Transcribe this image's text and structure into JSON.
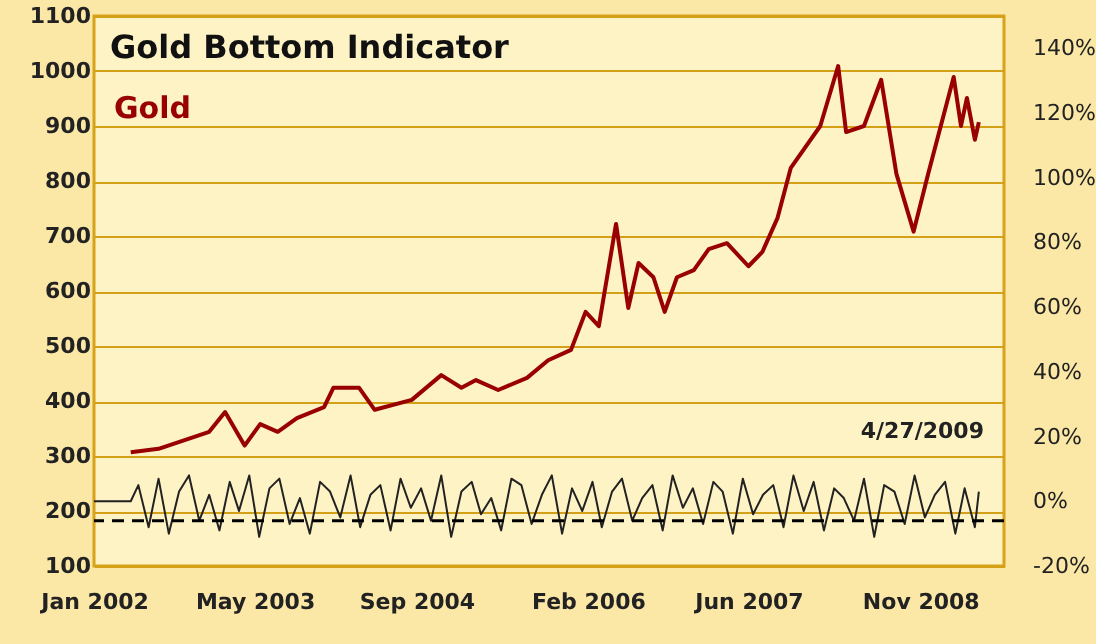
{
  "chart_data": {
    "type": "line",
    "title": "Gold Bottom Indicator",
    "annotations": [
      "4/27/2009"
    ],
    "xlim": [
      "2002-01-01",
      "2009-07-12"
    ],
    "xticks": [
      {
        "value": "2002-01",
        "label": "Jan 2002"
      },
      {
        "value": "2003-05",
        "label": "May 2003"
      },
      {
        "value": "2004-09",
        "label": "Sep 2004"
      },
      {
        "value": "2006-02",
        "label": "Feb 2006"
      },
      {
        "value": "2007-06",
        "label": "Jun 2007"
      },
      {
        "value": "2008-11",
        "label": "Nov 2008"
      }
    ],
    "ylim": [
      100,
      1100
    ],
    "yticks": [
      100,
      200,
      300,
      400,
      500,
      600,
      700,
      800,
      900,
      1000,
      1100
    ],
    "y2lim": [
      -20,
      150
    ],
    "y2ticks": [
      {
        "value": -20,
        "label": "-20%"
      },
      {
        "value": 0,
        "label": "0%"
      },
      {
        "value": 20,
        "label": "20%"
      },
      {
        "value": 40,
        "label": "40%"
      },
      {
        "value": 60,
        "label": "60%"
      },
      {
        "value": 80,
        "label": "80%"
      },
      {
        "value": 100,
        "label": "100%"
      },
      {
        "value": 120,
        "label": "120%"
      },
      {
        "value": 140,
        "label": "140%"
      }
    ],
    "grid": "y",
    "ref_lines": [
      {
        "axis": "y2",
        "value": -6,
        "color": "#000000",
        "line_style": "dashed"
      }
    ],
    "series": [
      {
        "name": "Gold",
        "color": "#990000",
        "x": [
          "2002-04-22",
          "2002-07-15",
          "2002-12-15",
          "2003-02-01",
          "2003-04-01",
          "2003-05-18",
          "2003-07-10",
          "2003-09-06",
          "2003-11-27",
          "2003-12-25",
          "2004-03-12",
          "2004-04-28",
          "2004-08-18",
          "2004-11-15",
          "2005-01-15",
          "2005-02-28",
          "2005-05-06",
          "2005-08-01",
          "2005-10-04",
          "2005-12-12",
          "2006-01-25",
          "2006-03-06",
          "2006-04-27",
          "2006-06-03",
          "2006-07-04",
          "2006-08-18",
          "2006-09-21",
          "2006-10-28",
          "2006-12-18",
          "2007-02-01",
          "2007-03-28",
          "2007-06-01",
          "2007-07-13",
          "2007-08-28",
          "2007-10-07",
          "2008-01-04",
          "2008-02-27",
          "2008-03-22",
          "2008-05-15",
          "2008-07-06",
          "2008-08-21",
          "2008-10-12",
          "2008-11-25",
          "2009-02-10",
          "2009-03-04",
          "2009-03-22",
          "2009-04-15",
          "2009-04-27"
        ],
        "values": [
          307,
          313,
          344,
          380,
          319,
          358,
          344,
          369,
          389,
          424,
          424,
          384,
          402,
          447,
          424,
          438,
          420,
          442,
          474,
          493,
          562,
          536,
          722,
          569,
          651,
          625,
          562,
          625,
          638,
          676,
          687,
          645,
          671,
          733,
          824,
          900,
          1009,
          889,
          900,
          984,
          813,
          708,
          813,
          989,
          900,
          951,
          875,
          907
        ]
      },
      {
        "color": "#222222",
        "axis": "y2",
        "x": [
          "2002-01-01",
          "2002-04-22",
          "2002-05-15",
          "2002-06-15",
          "2002-07-15",
          "2002-08-15",
          "2002-09-15",
          "2002-10-15",
          "2002-11-15",
          "2002-12-15",
          "2003-01-15",
          "2003-02-15",
          "2003-03-15",
          "2003-04-15",
          "2003-05-15",
          "2003-06-15",
          "2003-07-15",
          "2003-08-15",
          "2003-09-15",
          "2003-10-15",
          "2003-11-15",
          "2003-12-15",
          "2004-01-15",
          "2004-02-15",
          "2004-03-15",
          "2004-04-15",
          "2004-05-15",
          "2004-06-15",
          "2004-07-15",
          "2004-08-15",
          "2004-09-15",
          "2004-10-15",
          "2004-11-15",
          "2004-12-15",
          "2005-01-15",
          "2005-02-15",
          "2005-03-15",
          "2005-04-15",
          "2005-05-15",
          "2005-06-15",
          "2005-07-15",
          "2005-08-15",
          "2005-09-15",
          "2005-10-15",
          "2005-11-15",
          "2005-12-15",
          "2006-01-15",
          "2006-02-15",
          "2006-03-15",
          "2006-04-15",
          "2006-05-15",
          "2006-06-15",
          "2006-07-15",
          "2006-08-15",
          "2006-09-15",
          "2006-10-15",
          "2006-11-15",
          "2006-12-15",
          "2007-01-15",
          "2007-02-15",
          "2007-03-15",
          "2007-04-15",
          "2007-05-15",
          "2007-06-15",
          "2007-07-15",
          "2007-08-15",
          "2007-09-15",
          "2007-10-15",
          "2007-11-15",
          "2007-12-15",
          "2008-01-15",
          "2008-02-15",
          "2008-03-15",
          "2008-04-15",
          "2008-05-15",
          "2008-06-15",
          "2008-07-15",
          "2008-08-15",
          "2008-09-15",
          "2008-10-15",
          "2008-11-15",
          "2008-12-15",
          "2009-01-15",
          "2009-02-15",
          "2009-03-15",
          "2009-04-15",
          "2009-04-27"
        ],
        "values": [
          0,
          0,
          5,
          -8,
          7,
          -10,
          3,
          8,
          -6,
          2,
          -9,
          6,
          -3,
          8,
          -11,
          4,
          7,
          -7,
          1,
          -10,
          6,
          3,
          -5,
          8,
          -8,
          2,
          5,
          -9,
          7,
          -2,
          4,
          -6,
          8,
          -11,
          3,
          6,
          -4,
          1,
          -9,
          7,
          5,
          -7,
          2,
          8,
          -10,
          4,
          -3,
          6,
          -8,
          3,
          7,
          -6,
          1,
          5,
          -9,
          8,
          -2,
          4,
          -7,
          6,
          3,
          -10,
          7,
          -4,
          2,
          5,
          -8,
          8,
          -3,
          6,
          -9,
          4,
          1,
          -6,
          7,
          -11,
          5,
          3,
          -7,
          8,
          -5,
          2,
          6,
          -10,
          4,
          -8,
          3
        ]
      }
    ]
  }
}
